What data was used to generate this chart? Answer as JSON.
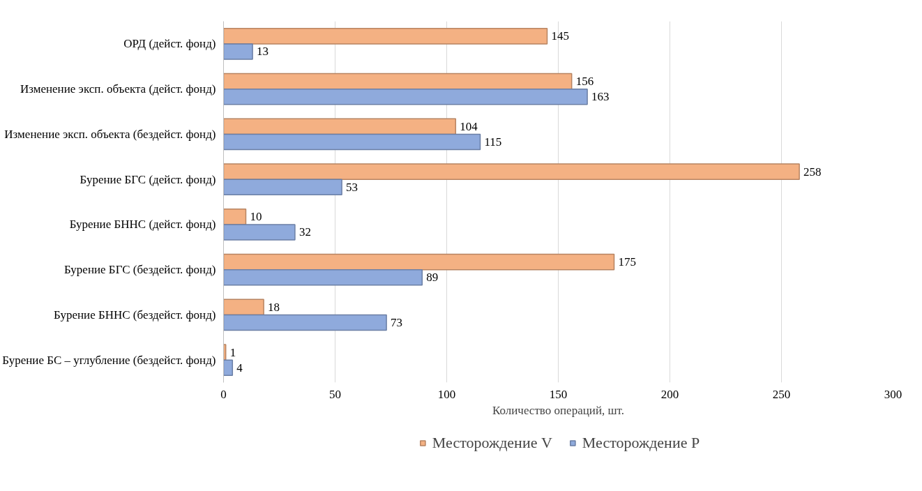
{
  "chart_data": {
    "type": "bar",
    "orientation": "horizontal",
    "xlabel": "Количество операций, шт.",
    "categories": [
      "ОРД (дейст. фонд)",
      "Изменение эксп. объекта (дейст. фонд)",
      "Изменение эксп. объекта (бездейст. фонд)",
      "Бурение БГС (дейст. фонд)",
      "Бурение БННС (дейст. фонд)",
      "Бурение БГС (бездейст. фонд)",
      "Бурение БННС (бездейст. фонд)",
      "Бурение БС – углубление (бездейст. фонд)"
    ],
    "series": [
      {
        "name": "Месторождение V",
        "color": "#f4b183",
        "values": [
          145,
          156,
          104,
          258,
          10,
          175,
          18,
          1
        ]
      },
      {
        "name": "Месторождение P",
        "color": "#8faadc",
        "values": [
          13,
          163,
          115,
          53,
          32,
          89,
          73,
          4
        ]
      }
    ],
    "xlim": [
      0,
      300
    ],
    "xticks": [
      0,
      50,
      100,
      150,
      200,
      250,
      300
    ],
    "grid": "x",
    "legend": "bottom",
    "data_labels": true
  }
}
